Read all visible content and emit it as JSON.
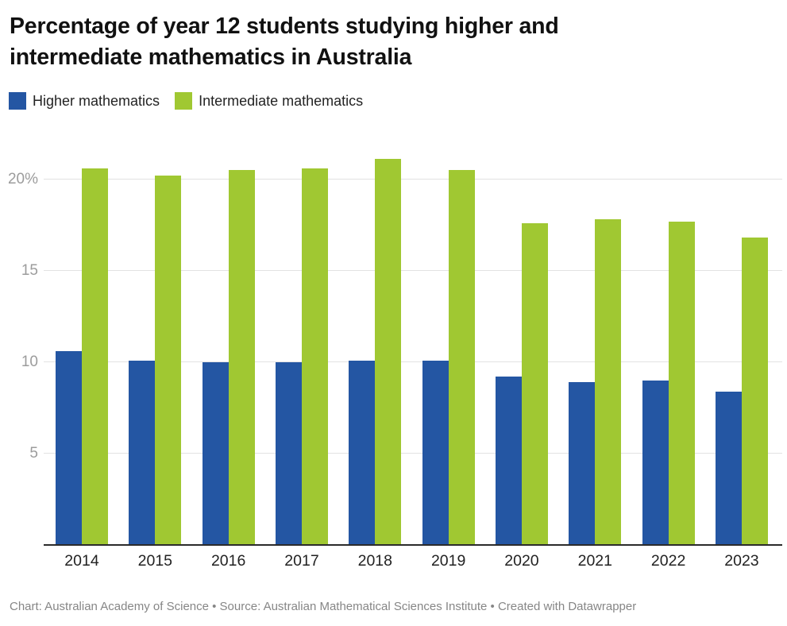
{
  "header": {
    "title": "Percentage of year 12 students studying higher and intermediate mathematics in Australia"
  },
  "legend": [
    {
      "label": "Higher mathematics",
      "color": "#2456a3"
    },
    {
      "label": "Intermediate mathematics",
      "color": "#a0c832"
    }
  ],
  "footer": {
    "text": "Chart: Australian Academy of Science • Source: Australian Mathematical Sciences Institute • Created with Datawrapper"
  },
  "chart_data": {
    "type": "bar",
    "title": "Percentage of year 12 students studying higher and intermediate mathematics in Australia",
    "categories": [
      "2014",
      "2015",
      "2016",
      "2017",
      "2018",
      "2019",
      "2020",
      "2021",
      "2022",
      "2023"
    ],
    "series": [
      {
        "name": "Higher mathematics",
        "color": "#2456a3",
        "values": [
          10.6,
          10.1,
          10.0,
          10.0,
          10.1,
          10.1,
          9.2,
          8.9,
          9.0,
          8.4
        ]
      },
      {
        "name": "Intermediate mathematics",
        "color": "#a0c832",
        "values": [
          20.6,
          20.2,
          20.5,
          20.6,
          21.1,
          20.5,
          17.6,
          17.8,
          17.7,
          16.8
        ]
      }
    ],
    "xlabel": "",
    "ylabel": "",
    "ylim": [
      0,
      22.2
    ],
    "yticks": [
      {
        "value": 5,
        "label": "5"
      },
      {
        "value": 10,
        "label": "10"
      },
      {
        "value": 15,
        "label": "15"
      },
      {
        "value": 20,
        "label": "20%"
      }
    ],
    "grid": true,
    "legend_position": "top-left",
    "value_unit": "%"
  }
}
